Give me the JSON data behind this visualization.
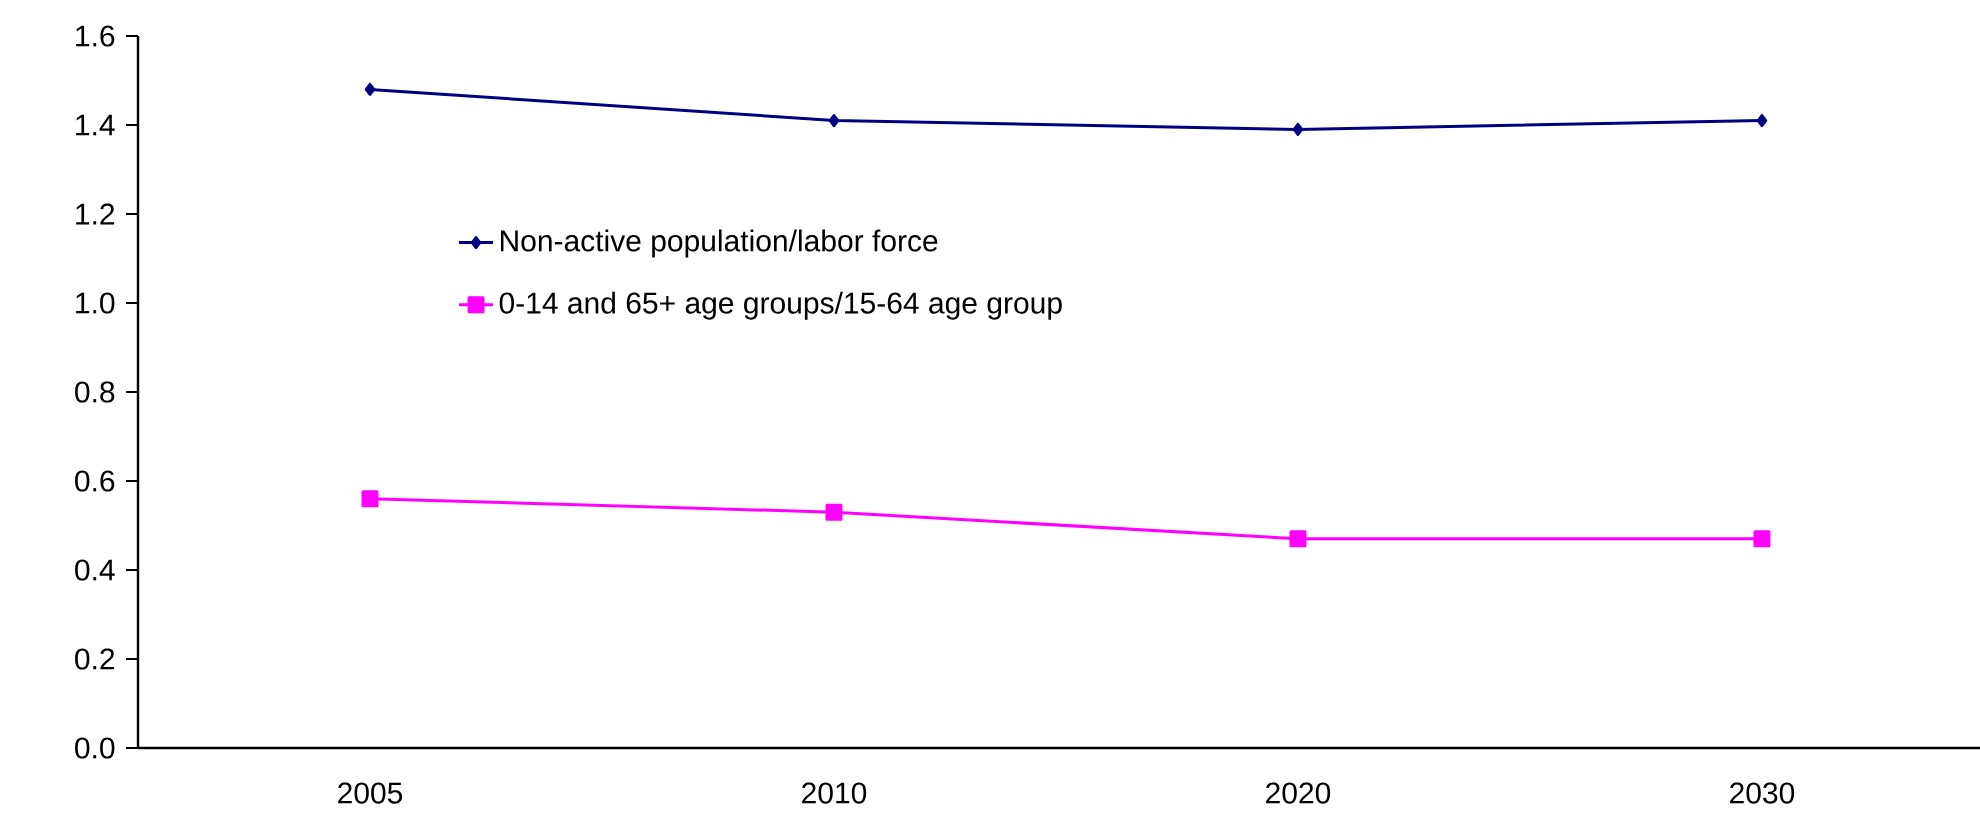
{
  "chart_data": {
    "type": "line",
    "categories": [
      "2005",
      "2010",
      "2020",
      "2030"
    ],
    "series": [
      {
        "name": "Non-active population/labor force",
        "color": "#000080",
        "marker": "diamond",
        "values": [
          1.48,
          1.41,
          1.39,
          1.41
        ]
      },
      {
        "name": "0-14 and 65+ age groups/15-64 age group",
        "color": "#ff00ff",
        "marker": "square",
        "values": [
          0.56,
          0.53,
          0.47,
          0.47
        ]
      }
    ],
    "ylim": [
      0,
      1.6
    ],
    "yticks": [
      {
        "value": 0,
        "label": "0.0"
      },
      {
        "value": 0.2,
        "label": "0.2"
      },
      {
        "value": 0.4,
        "label": "0.4"
      },
      {
        "value": 0.6,
        "label": "0.6"
      },
      {
        "value": 0.8,
        "label": "0.8"
      },
      {
        "value": 1.0,
        "label": "1.0"
      },
      {
        "value": 1.2,
        "label": "1.2"
      },
      {
        "value": 1.4,
        "label": "1.4"
      },
      {
        "value": 1.6,
        "label": "1.6"
      }
    ],
    "grid": false,
    "legend": "left",
    "line_style": "solid"
  }
}
